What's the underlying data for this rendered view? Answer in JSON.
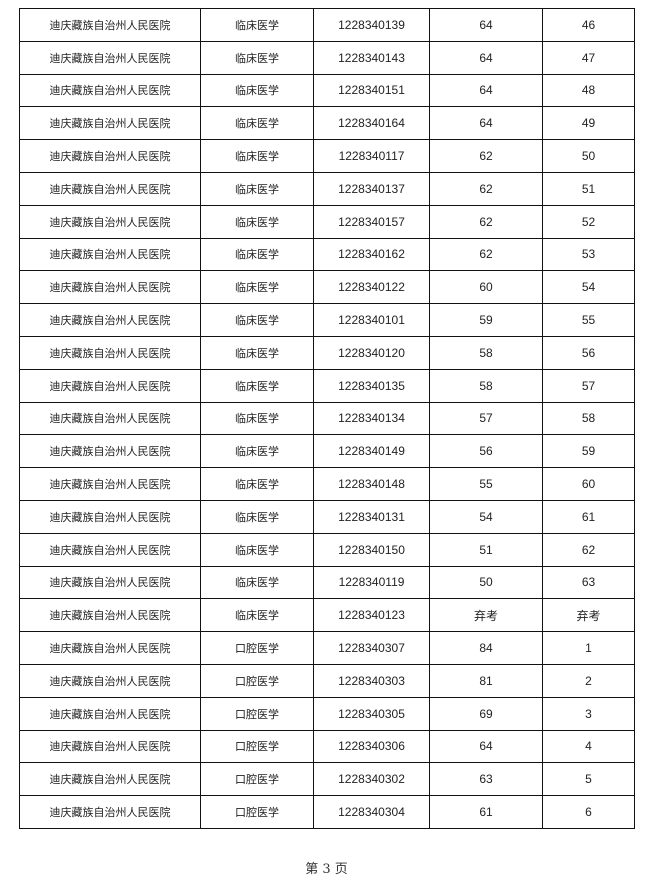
{
  "table": {
    "rows": [
      [
        "迪庆藏族自治州人民医院",
        "临床医学",
        "1228340139",
        "64",
        "46"
      ],
      [
        "迪庆藏族自治州人民医院",
        "临床医学",
        "1228340143",
        "64",
        "47"
      ],
      [
        "迪庆藏族自治州人民医院",
        "临床医学",
        "1228340151",
        "64",
        "48"
      ],
      [
        "迪庆藏族自治州人民医院",
        "临床医学",
        "1228340164",
        "64",
        "49"
      ],
      [
        "迪庆藏族自治州人民医院",
        "临床医学",
        "1228340117",
        "62",
        "50"
      ],
      [
        "迪庆藏族自治州人民医院",
        "临床医学",
        "1228340137",
        "62",
        "51"
      ],
      [
        "迪庆藏族自治州人民医院",
        "临床医学",
        "1228340157",
        "62",
        "52"
      ],
      [
        "迪庆藏族自治州人民医院",
        "临床医学",
        "1228340162",
        "62",
        "53"
      ],
      [
        "迪庆藏族自治州人民医院",
        "临床医学",
        "1228340122",
        "60",
        "54"
      ],
      [
        "迪庆藏族自治州人民医院",
        "临床医学",
        "1228340101",
        "59",
        "55"
      ],
      [
        "迪庆藏族自治州人民医院",
        "临床医学",
        "1228340120",
        "58",
        "56"
      ],
      [
        "迪庆藏族自治州人民医院",
        "临床医学",
        "1228340135",
        "58",
        "57"
      ],
      [
        "迪庆藏族自治州人民医院",
        "临床医学",
        "1228340134",
        "57",
        "58"
      ],
      [
        "迪庆藏族自治州人民医院",
        "临床医学",
        "1228340149",
        "56",
        "59"
      ],
      [
        "迪庆藏族自治州人民医院",
        "临床医学",
        "1228340148",
        "55",
        "60"
      ],
      [
        "迪庆藏族自治州人民医院",
        "临床医学",
        "1228340131",
        "54",
        "61"
      ],
      [
        "迪庆藏族自治州人民医院",
        "临床医学",
        "1228340150",
        "51",
        "62"
      ],
      [
        "迪庆藏族自治州人民医院",
        "临床医学",
        "1228340119",
        "50",
        "63"
      ],
      [
        "迪庆藏族自治州人民医院",
        "临床医学",
        "1228340123",
        "弃考",
        "弃考"
      ],
      [
        "迪庆藏族自治州人民医院",
        "口腔医学",
        "1228340307",
        "84",
        "1"
      ],
      [
        "迪庆藏族自治州人民医院",
        "口腔医学",
        "1228340303",
        "81",
        "2"
      ],
      [
        "迪庆藏族自治州人民医院",
        "口腔医学",
        "1228340305",
        "69",
        "3"
      ],
      [
        "迪庆藏族自治州人民医院",
        "口腔医学",
        "1228340306",
        "64",
        "4"
      ],
      [
        "迪庆藏族自治州人民医院",
        "口腔医学",
        "1228340302",
        "63",
        "5"
      ],
      [
        "迪庆藏族自治州人民医院",
        "口腔医学",
        "1228340304",
        "61",
        "6"
      ]
    ]
  },
  "footer": {
    "page_label": "第 3 页"
  }
}
